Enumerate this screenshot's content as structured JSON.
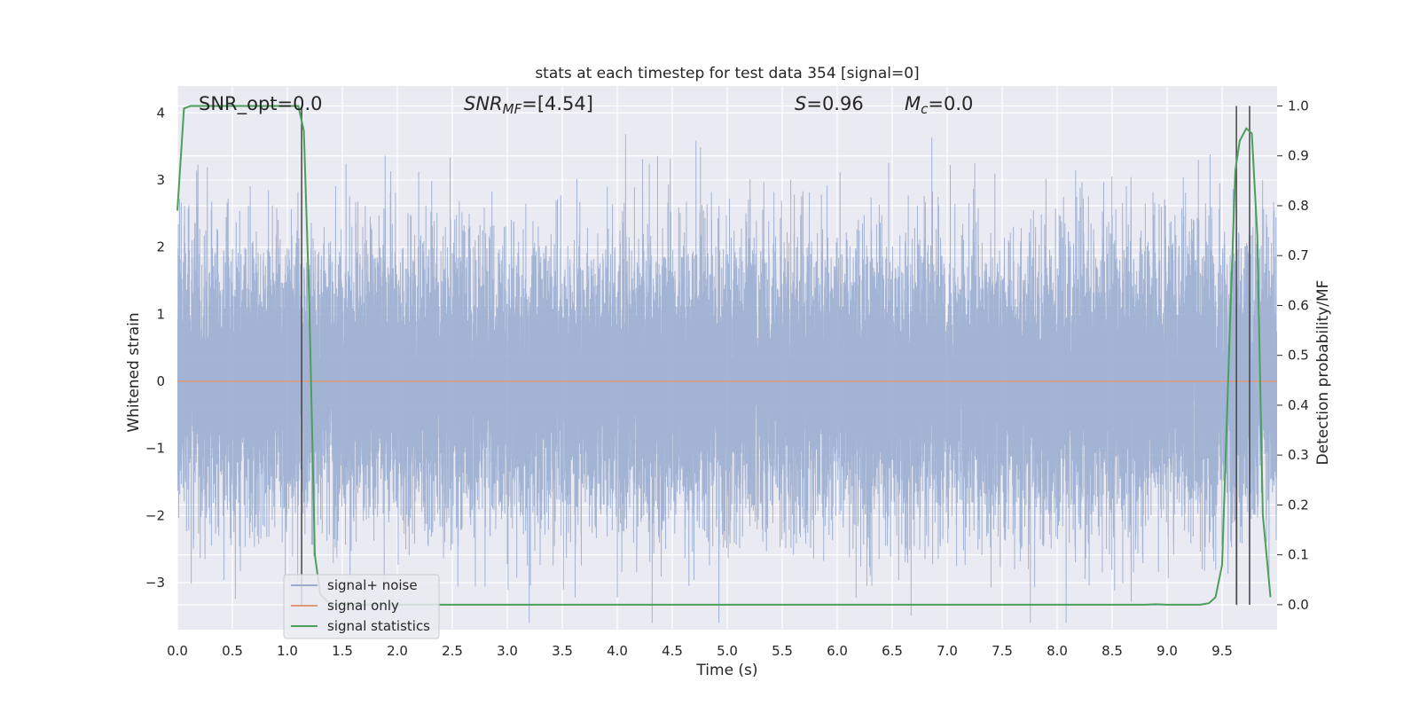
{
  "chart_data": {
    "type": "line",
    "title": "stats at each timestep for test data 354 [signal=0]",
    "xlabel": "Time (s)",
    "ylabel": "Whitened strain",
    "ylabel_right": "Detection probability/MF",
    "xlim": [
      0.0,
      10.0
    ],
    "ylim": [
      -3.7,
      4.4
    ],
    "ylim_right": [
      -0.05,
      1.04
    ],
    "xticks": [
      "0.0",
      "0.5",
      "1.0",
      "1.5",
      "2.0",
      "2.5",
      "3.0",
      "3.5",
      "4.0",
      "4.5",
      "5.0",
      "5.5",
      "6.0",
      "6.5",
      "7.0",
      "7.5",
      "8.0",
      "8.5",
      "9.0",
      "9.5"
    ],
    "yticks": [
      "−3",
      "−2",
      "−1",
      "0",
      "1",
      "2",
      "3",
      "4"
    ],
    "yticks_right": [
      "0.0",
      "0.1",
      "0.2",
      "0.3",
      "0.4",
      "0.5",
      "0.6",
      "0.7",
      "0.8",
      "0.9",
      "1.0"
    ],
    "grid": true,
    "legend_position": "lower-left",
    "annotations": {
      "snr_opt": "SNR_opt=0.0",
      "snr_mf_name": "SNR",
      "snr_mf_sub": "MF",
      "snr_mf_value": "=[4.54]",
      "s_name": "S",
      "s_value": "=0.96",
      "mc_name": "M",
      "mc_sub": "c",
      "mc_value": "=0.0"
    },
    "vertical_lines_x": [
      1.13,
      9.63,
      9.75
    ],
    "series": [
      {
        "name": "signal+ noise",
        "axis": "left",
        "color": "#9aadd0",
        "sample_rate_hz": 2048,
        "std": 1.0,
        "note_seed": 354
      },
      {
        "name": "signal only",
        "axis": "left",
        "color": "#e09a7a",
        "x": [
          0.0,
          10.0
        ],
        "values": [
          0.0,
          0.0
        ]
      },
      {
        "name": "signal statistics",
        "axis": "right",
        "color": "#4c9e5a",
        "x": [
          0.0,
          0.06,
          0.12,
          0.3,
          0.6,
          0.9,
          1.05,
          1.1,
          1.15,
          1.2,
          1.25,
          1.3,
          1.4,
          2.0,
          3.0,
          4.0,
          5.0,
          6.0,
          7.0,
          8.0,
          8.6,
          8.8,
          8.9,
          9.0,
          9.2,
          9.3,
          9.38,
          9.44,
          9.5,
          9.57,
          9.62,
          9.66,
          9.72,
          9.77,
          9.82,
          9.87,
          9.94
        ],
        "values": [
          0.79,
          0.995,
          1.0,
          1.0,
          1.0,
          1.0,
          1.0,
          1.0,
          0.95,
          0.6,
          0.1,
          0.02,
          0.0,
          0.0,
          0.0,
          0.0,
          0.0,
          0.0,
          0.0,
          0.0,
          0.0,
          0.0,
          0.001,
          0.0,
          0.0,
          0.0,
          0.003,
          0.015,
          0.08,
          0.55,
          0.87,
          0.93,
          0.955,
          0.945,
          0.74,
          0.18,
          0.015
        ]
      }
    ]
  }
}
